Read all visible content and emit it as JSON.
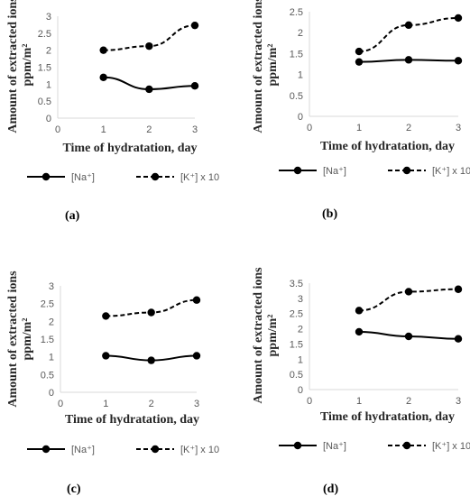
{
  "colors": {
    "axis": "#d9d9d9",
    "series": "#000000",
    "text": "#595959"
  },
  "chart_data": [
    {
      "panel_label": "(a)",
      "type": "line",
      "xlabel": "Time of hydratation, day",
      "ylabel": "Amount of extracted ions,ppm/m²",
      "xlim": [
        0,
        3
      ],
      "ylim": [
        0,
        3
      ],
      "xticks": [
        0,
        1,
        2,
        3
      ],
      "yticks": [
        0,
        0.5,
        1,
        1.5,
        2,
        2.5,
        3
      ],
      "ytick_labels": [
        "0",
        "0.5",
        "1",
        "1.5",
        "2",
        "2.5",
        "3"
      ],
      "x": [
        1,
        2,
        3
      ],
      "series": [
        {
          "name": "[Na⁺]",
          "style": "solid",
          "values": [
            1.2,
            0.85,
            0.95
          ]
        },
        {
          "name": "[K⁺] x 10",
          "style": "dashed",
          "values": [
            2.0,
            2.12,
            2.73
          ]
        }
      ],
      "legend": "bottom",
      "grid": false
    },
    {
      "panel_label": "(b)",
      "type": "line",
      "xlabel": "Time of hydratation, day",
      "ylabel": "Amount of extracted ions,ppm/m²",
      "xlim": [
        0,
        3
      ],
      "ylim": [
        0,
        2.5
      ],
      "xticks": [
        0,
        1,
        2,
        3
      ],
      "yticks": [
        0,
        0.5,
        1,
        1.5,
        2,
        2.5
      ],
      "ytick_labels": [
        "0",
        "0.5",
        "1",
        "1.5",
        "2",
        "2.5"
      ],
      "x": [
        1,
        2,
        3
      ],
      "series": [
        {
          "name": "[Na⁺]",
          "style": "solid",
          "values": [
            1.3,
            1.35,
            1.33
          ]
        },
        {
          "name": "[K⁺] x 10",
          "style": "dashed",
          "values": [
            1.55,
            2.18,
            2.35
          ]
        }
      ],
      "legend": "bottom",
      "grid": false
    },
    {
      "panel_label": "(c)",
      "type": "line",
      "xlabel": "Time of hydratation, day",
      "ylabel": "Amount of extracted ions,ppm/m²",
      "xlim": [
        0,
        3
      ],
      "ylim": [
        0,
        3
      ],
      "xticks": [
        0,
        1,
        2,
        3
      ],
      "yticks": [
        0,
        0.5,
        1,
        1.5,
        2,
        2.5,
        3
      ],
      "ytick_labels": [
        "0",
        "0.5",
        "1",
        "1.5",
        "2",
        "2.5",
        "3"
      ],
      "x": [
        1,
        2,
        3
      ],
      "series": [
        {
          "name": "[Na⁺]",
          "style": "solid",
          "values": [
            1.03,
            0.9,
            1.03
          ]
        },
        {
          "name": "[K⁺] x 10",
          "style": "dashed",
          "values": [
            2.15,
            2.25,
            2.6
          ]
        }
      ],
      "legend": "bottom",
      "grid": false
    },
    {
      "panel_label": "(d)",
      "type": "line",
      "xlabel": "Time of hydratation, day",
      "ylabel": "Amount of extracted ions,ppm/m²",
      "xlim": [
        0,
        3
      ],
      "ylim": [
        0,
        3.5
      ],
      "xticks": [
        0,
        1,
        2,
        3
      ],
      "yticks": [
        0,
        0.5,
        1,
        1.5,
        2,
        2.5,
        3,
        3.5
      ],
      "ytick_labels": [
        "0",
        "0.5",
        "1",
        "1.5",
        "2",
        "2.5",
        "3",
        "3.5"
      ],
      "x": [
        1,
        2,
        3
      ],
      "series": [
        {
          "name": "[Na⁺]",
          "style": "solid",
          "values": [
            1.9,
            1.75,
            1.67
          ]
        },
        {
          "name": "[K⁺] x 10",
          "style": "dashed",
          "values": [
            2.6,
            3.22,
            3.3
          ]
        }
      ],
      "legend": "bottom",
      "grid": false
    }
  ]
}
